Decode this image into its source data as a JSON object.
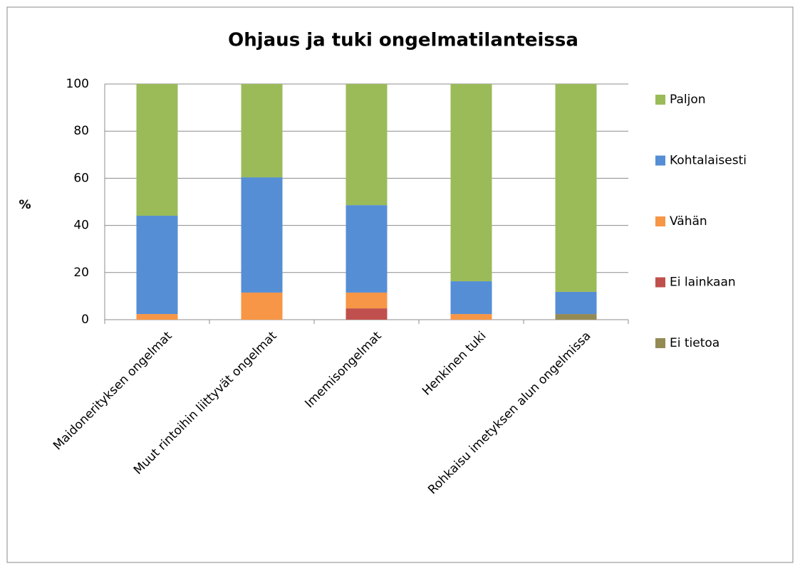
{
  "chart_data": {
    "type": "stacked_bar",
    "title": "Ohjaus ja tuki ongelmatilanteissa",
    "y_label": "%",
    "categories": [
      "Maidonerityksen ongelmat",
      "Muut rintoihin liittyvät ongelmat",
      "Imemisongelmat",
      "Henkinen tuki",
      "Rohkaisu imetyksen alun ongelmissa"
    ],
    "series": [
      {
        "name": "Paljon",
        "color": "#9bbb59",
        "values": [
          55.9,
          39.6,
          51.4,
          83.7,
          88.2
        ]
      },
      {
        "name": "Kohtalaisesti",
        "color": "#558ed5",
        "values": [
          41.7,
          48.9,
          37.1,
          13.9,
          9.4
        ]
      },
      {
        "name": "Vähän",
        "color": "#f79646",
        "values": [
          2.4,
          11.5,
          6.7,
          2.4,
          0
        ]
      },
      {
        "name": "Ei lainkaan",
        "color": "#c0504d",
        "values": [
          0,
          0,
          4.8,
          0,
          0
        ]
      },
      {
        "name": "Ei tietoa",
        "color": "#948a54",
        "values": [
          0,
          0,
          0,
          0,
          2.4
        ]
      }
    ],
    "ylim": [
      0,
      100
    ],
    "yticks": [
      0,
      20,
      40,
      60,
      80,
      100
    ],
    "grid": true,
    "legend": "right"
  }
}
